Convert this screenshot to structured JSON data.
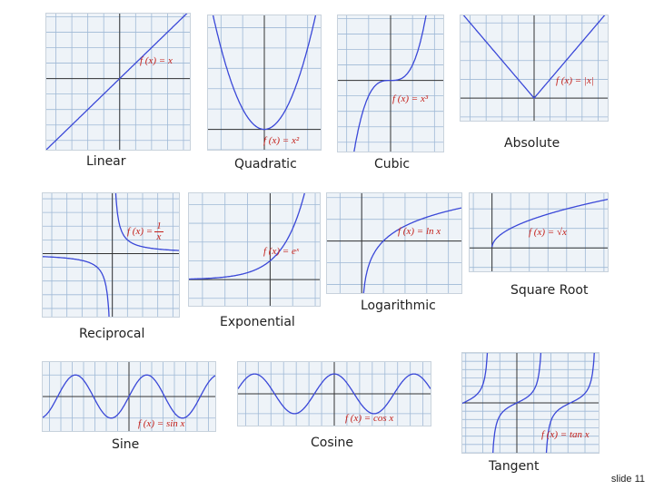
{
  "graphs": [
    {
      "id": "linear",
      "caption": "Linear",
      "equation": "f (x) = x"
    },
    {
      "id": "quadratic",
      "caption": "Quadratic",
      "equation": "f (x) = x²"
    },
    {
      "id": "cubic",
      "caption": "Cubic",
      "equation": "f (x) = x³"
    },
    {
      "id": "absolute",
      "caption": "Absolute",
      "equation": "f (x) = |x|"
    },
    {
      "id": "reciprocal",
      "caption": "Reciprocal",
      "equation": "f (x) =",
      "eq_num": "1",
      "eq_den": "x"
    },
    {
      "id": "exponential",
      "caption": "Exponential",
      "equation": "f (x) = eˣ"
    },
    {
      "id": "logarithmic",
      "caption": "Logarithmic",
      "equation": "f (x) = ln x"
    },
    {
      "id": "squareroot",
      "caption": "Square Root",
      "equation": "f (x) = √x"
    },
    {
      "id": "sine",
      "caption": "Sine",
      "equation": "f (x) = sin x"
    },
    {
      "id": "cosine",
      "caption": "Cosine",
      "equation": "f (x) = cos x"
    },
    {
      "id": "tangent",
      "caption": "Tangent",
      "equation": "f (x) = tan x"
    }
  ],
  "colors": {
    "curve": "#3a48d8",
    "equation": "#c4201a",
    "grid": "#9fb9d6",
    "axis": "#333333"
  },
  "footer": {
    "slide_label": "slide 11"
  }
}
